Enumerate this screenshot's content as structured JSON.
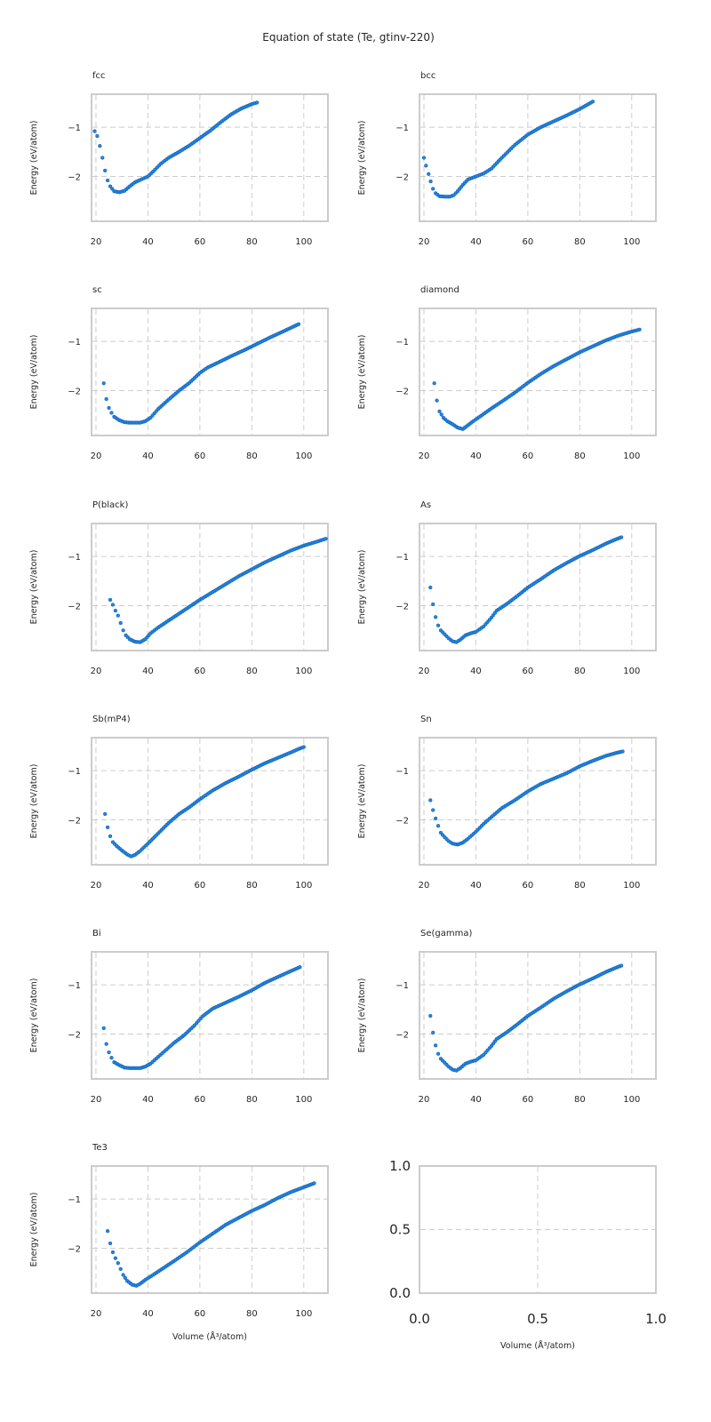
{
  "chart_data": {
    "type": "scatter",
    "title": "Equation of state (Te, gtinv-220)",
    "xlabel": "Volume (Å³/atom)",
    "ylabel": "Energy (eV/atom)",
    "grid": true,
    "xlim": [
      18.3,
      109.3
    ],
    "ylim": [
      -2.91,
      -0.33
    ],
    "xticks": [
      20,
      40,
      60,
      80,
      100
    ],
    "yticks": [
      -1,
      -2
    ],
    "xtick_labels": [
      "20",
      "40",
      "60",
      "80",
      "100"
    ],
    "ytick_labels": [
      "−1",
      "−2"
    ],
    "marker_color": "#1f86e6",
    "panels": [
      {
        "name": "fcc",
        "key_points": [
          [
            19.5,
            -1.08
          ],
          [
            20.5,
            -1.18
          ],
          [
            21.5,
            -1.38
          ],
          [
            22.5,
            -1.62
          ],
          [
            23.5,
            -1.88
          ],
          [
            24.5,
            -2.08
          ],
          [
            25.5,
            -2.2
          ],
          [
            27,
            -2.3
          ],
          [
            29,
            -2.32
          ],
          [
            31,
            -2.29
          ],
          [
            33,
            -2.2
          ],
          [
            35,
            -2.12
          ],
          [
            37,
            -2.07
          ],
          [
            40,
            -2.0
          ],
          [
            42,
            -1.9
          ],
          [
            45,
            -1.74
          ],
          [
            48,
            -1.62
          ],
          [
            52,
            -1.5
          ],
          [
            56,
            -1.37
          ],
          [
            60,
            -1.22
          ],
          [
            64,
            -1.07
          ],
          [
            68,
            -0.9
          ],
          [
            72,
            -0.74
          ],
          [
            76,
            -0.62
          ],
          [
            80,
            -0.53
          ],
          [
            82,
            -0.5
          ]
        ]
      },
      {
        "name": "bcc",
        "key_points": [
          [
            20,
            -1.62
          ],
          [
            20.8,
            -1.78
          ],
          [
            21.8,
            -1.95
          ],
          [
            22.6,
            -2.1
          ],
          [
            23.5,
            -2.25
          ],
          [
            24.5,
            -2.34
          ],
          [
            26,
            -2.4
          ],
          [
            28,
            -2.41
          ],
          [
            30,
            -2.41
          ],
          [
            31.5,
            -2.38
          ],
          [
            33,
            -2.3
          ],
          [
            35,
            -2.17
          ],
          [
            37,
            -2.06
          ],
          [
            40,
            -2.0
          ],
          [
            43,
            -1.94
          ],
          [
            46,
            -1.84
          ],
          [
            50,
            -1.62
          ],
          [
            55,
            -1.36
          ],
          [
            60,
            -1.15
          ],
          [
            65,
            -1.0
          ],
          [
            70,
            -0.88
          ],
          [
            75,
            -0.76
          ],
          [
            80,
            -0.63
          ],
          [
            85,
            -0.48
          ]
        ]
      },
      {
        "name": "sc",
        "key_points": [
          [
            23,
            -1.85
          ],
          [
            24,
            -2.17
          ],
          [
            25,
            -2.35
          ],
          [
            26,
            -2.45
          ],
          [
            27,
            -2.53
          ],
          [
            29,
            -2.6
          ],
          [
            31,
            -2.64
          ],
          [
            33,
            -2.65
          ],
          [
            37,
            -2.65
          ],
          [
            39,
            -2.62
          ],
          [
            41,
            -2.55
          ],
          [
            44,
            -2.37
          ],
          [
            48,
            -2.18
          ],
          [
            52,
            -2.0
          ],
          [
            56,
            -1.84
          ],
          [
            60,
            -1.64
          ],
          [
            63,
            -1.53
          ],
          [
            67,
            -1.43
          ],
          [
            72,
            -1.3
          ],
          [
            77,
            -1.18
          ],
          [
            82,
            -1.05
          ],
          [
            87,
            -0.92
          ],
          [
            92,
            -0.8
          ],
          [
            96,
            -0.7
          ],
          [
            98,
            -0.65
          ]
        ]
      },
      {
        "name": "diamond",
        "key_points": [
          [
            24,
            -1.85
          ],
          [
            25,
            -2.2
          ],
          [
            26,
            -2.42
          ],
          [
            27.5,
            -2.55
          ],
          [
            29,
            -2.62
          ],
          [
            31,
            -2.68
          ],
          [
            33,
            -2.75
          ],
          [
            35,
            -2.78
          ],
          [
            37,
            -2.7
          ],
          [
            39,
            -2.62
          ],
          [
            42,
            -2.51
          ],
          [
            46,
            -2.36
          ],
          [
            50,
            -2.22
          ],
          [
            55,
            -2.04
          ],
          [
            60,
            -1.84
          ],
          [
            65,
            -1.66
          ],
          [
            70,
            -1.5
          ],
          [
            75,
            -1.36
          ],
          [
            80,
            -1.22
          ],
          [
            85,
            -1.1
          ],
          [
            90,
            -0.98
          ],
          [
            95,
            -0.88
          ],
          [
            100,
            -0.8
          ],
          [
            103,
            -0.76
          ]
        ]
      },
      {
        "name": "P(black)",
        "key_points": [
          [
            25.5,
            -1.88
          ],
          [
            26.5,
            -1.98
          ],
          [
            27.5,
            -2.1
          ],
          [
            28.5,
            -2.2
          ],
          [
            29.5,
            -2.35
          ],
          [
            30.5,
            -2.5
          ],
          [
            31.5,
            -2.6
          ],
          [
            33,
            -2.68
          ],
          [
            35,
            -2.73
          ],
          [
            37,
            -2.74
          ],
          [
            39,
            -2.68
          ],
          [
            41,
            -2.56
          ],
          [
            44,
            -2.44
          ],
          [
            48,
            -2.3
          ],
          [
            52,
            -2.16
          ],
          [
            56,
            -2.02
          ],
          [
            60,
            -1.88
          ],
          [
            65,
            -1.72
          ],
          [
            70,
            -1.56
          ],
          [
            75,
            -1.4
          ],
          [
            80,
            -1.26
          ],
          [
            85,
            -1.12
          ],
          [
            90,
            -1.0
          ],
          [
            95,
            -0.88
          ],
          [
            100,
            -0.78
          ],
          [
            105,
            -0.7
          ],
          [
            108.5,
            -0.64
          ]
        ]
      },
      {
        "name": "As",
        "key_points": [
          [
            22.5,
            -1.63
          ],
          [
            23.5,
            -1.97
          ],
          [
            24.5,
            -2.23
          ],
          [
            25.5,
            -2.4
          ],
          [
            26.5,
            -2.5
          ],
          [
            28,
            -2.58
          ],
          [
            29.5,
            -2.66
          ],
          [
            31,
            -2.72
          ],
          [
            32.5,
            -2.74
          ],
          [
            34,
            -2.69
          ],
          [
            36,
            -2.6
          ],
          [
            38,
            -2.56
          ],
          [
            40,
            -2.53
          ],
          [
            43,
            -2.42
          ],
          [
            46,
            -2.24
          ],
          [
            48,
            -2.1
          ],
          [
            52,
            -1.96
          ],
          [
            56,
            -1.8
          ],
          [
            60,
            -1.63
          ],
          [
            65,
            -1.46
          ],
          [
            70,
            -1.28
          ],
          [
            75,
            -1.13
          ],
          [
            80,
            -0.99
          ],
          [
            85,
            -0.87
          ],
          [
            90,
            -0.74
          ],
          [
            94,
            -0.65
          ],
          [
            96,
            -0.61
          ]
        ]
      },
      {
        "name": "Sb(mP4)",
        "key_points": [
          [
            23.5,
            -1.88
          ],
          [
            24.5,
            -2.15
          ],
          [
            25.5,
            -2.33
          ],
          [
            26.5,
            -2.45
          ],
          [
            28,
            -2.53
          ],
          [
            30,
            -2.62
          ],
          [
            32,
            -2.7
          ],
          [
            33.5,
            -2.74
          ],
          [
            35,
            -2.71
          ],
          [
            37,
            -2.63
          ],
          [
            40,
            -2.48
          ],
          [
            44,
            -2.27
          ],
          [
            48,
            -2.06
          ],
          [
            52,
            -1.88
          ],
          [
            56,
            -1.74
          ],
          [
            60,
            -1.58
          ],
          [
            65,
            -1.4
          ],
          [
            70,
            -1.25
          ],
          [
            75,
            -1.12
          ],
          [
            80,
            -0.98
          ],
          [
            85,
            -0.85
          ],
          [
            90,
            -0.74
          ],
          [
            95,
            -0.63
          ],
          [
            98,
            -0.56
          ],
          [
            100,
            -0.52
          ]
        ]
      },
      {
        "name": "Sn",
        "key_points": [
          [
            22.5,
            -1.6
          ],
          [
            23.5,
            -1.8
          ],
          [
            24.5,
            -1.97
          ],
          [
            25.5,
            -2.12
          ],
          [
            26.5,
            -2.26
          ],
          [
            28,
            -2.35
          ],
          [
            29.5,
            -2.43
          ],
          [
            31,
            -2.48
          ],
          [
            33,
            -2.5
          ],
          [
            35,
            -2.46
          ],
          [
            37,
            -2.38
          ],
          [
            40,
            -2.24
          ],
          [
            43,
            -2.08
          ],
          [
            46,
            -1.94
          ],
          [
            50,
            -1.76
          ],
          [
            55,
            -1.6
          ],
          [
            60,
            -1.42
          ],
          [
            65,
            -1.27
          ],
          [
            70,
            -1.16
          ],
          [
            75,
            -1.05
          ],
          [
            80,
            -0.91
          ],
          [
            85,
            -0.8
          ],
          [
            90,
            -0.7
          ],
          [
            94,
            -0.64
          ],
          [
            96.5,
            -0.61
          ]
        ]
      },
      {
        "name": "Bi",
        "key_points": [
          [
            23,
            -1.88
          ],
          [
            24,
            -2.2
          ],
          [
            25,
            -2.37
          ],
          [
            26,
            -2.48
          ],
          [
            27,
            -2.57
          ],
          [
            29,
            -2.63
          ],
          [
            31,
            -2.68
          ],
          [
            33,
            -2.69
          ],
          [
            37,
            -2.69
          ],
          [
            39,
            -2.66
          ],
          [
            41,
            -2.6
          ],
          [
            44,
            -2.46
          ],
          [
            47,
            -2.32
          ],
          [
            50,
            -2.18
          ],
          [
            54,
            -2.02
          ],
          [
            58,
            -1.82
          ],
          [
            61,
            -1.64
          ],
          [
            65,
            -1.48
          ],
          [
            70,
            -1.36
          ],
          [
            75,
            -1.24
          ],
          [
            80,
            -1.11
          ],
          [
            85,
            -0.96
          ],
          [
            90,
            -0.84
          ],
          [
            95,
            -0.72
          ],
          [
            98.5,
            -0.64
          ]
        ]
      },
      {
        "name": "Se(gamma)",
        "key_points": [
          [
            22.5,
            -1.63
          ],
          [
            23.5,
            -1.97
          ],
          [
            24.5,
            -2.23
          ],
          [
            25.5,
            -2.4
          ],
          [
            26.5,
            -2.5
          ],
          [
            28,
            -2.58
          ],
          [
            29.5,
            -2.66
          ],
          [
            31,
            -2.72
          ],
          [
            32.5,
            -2.74
          ],
          [
            34,
            -2.69
          ],
          [
            36,
            -2.6
          ],
          [
            38,
            -2.56
          ],
          [
            40,
            -2.53
          ],
          [
            43,
            -2.42
          ],
          [
            46,
            -2.24
          ],
          [
            48,
            -2.1
          ],
          [
            52,
            -1.96
          ],
          [
            56,
            -1.8
          ],
          [
            60,
            -1.63
          ],
          [
            65,
            -1.46
          ],
          [
            70,
            -1.28
          ],
          [
            75,
            -1.13
          ],
          [
            80,
            -0.99
          ],
          [
            85,
            -0.87
          ],
          [
            90,
            -0.74
          ],
          [
            94,
            -0.65
          ],
          [
            96,
            -0.61
          ]
        ]
      },
      {
        "name": "Te3",
        "key_points": [
          [
            24.5,
            -1.65
          ],
          [
            25.5,
            -1.9
          ],
          [
            26.5,
            -2.08
          ],
          [
            27.5,
            -2.2
          ],
          [
            28.5,
            -2.3
          ],
          [
            29.5,
            -2.42
          ],
          [
            30.5,
            -2.54
          ],
          [
            32,
            -2.66
          ],
          [
            34,
            -2.74
          ],
          [
            35.5,
            -2.76
          ],
          [
            37,
            -2.72
          ],
          [
            39,
            -2.64
          ],
          [
            42,
            -2.54
          ],
          [
            46,
            -2.4
          ],
          [
            50,
            -2.26
          ],
          [
            55,
            -2.08
          ],
          [
            60,
            -1.88
          ],
          [
            65,
            -1.7
          ],
          [
            70,
            -1.52
          ],
          [
            75,
            -1.38
          ],
          [
            80,
            -1.24
          ],
          [
            85,
            -1.12
          ],
          [
            90,
            -0.98
          ],
          [
            95,
            -0.86
          ],
          [
            100,
            -0.76
          ],
          [
            104,
            -0.68
          ]
        ]
      }
    ],
    "empty_panel": {
      "xlim": [
        0,
        1
      ],
      "ylim": [
        0,
        1
      ],
      "xtick_labels": [
        "0.0",
        "0.5",
        "1.0"
      ],
      "ytick_labels": [
        "1.0",
        "0.5",
        "0.0"
      ],
      "xlabel": "Volume (Å³/atom)"
    }
  }
}
